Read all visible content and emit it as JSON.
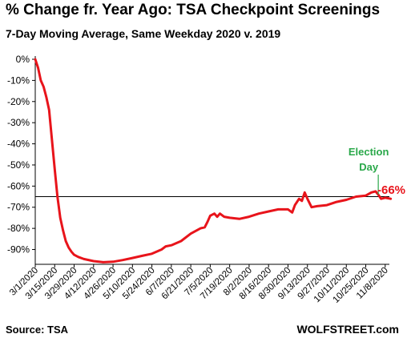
{
  "chart_data": {
    "type": "line",
    "title": "% Change fr. Year Ago: TSA Checkpoint Screenings",
    "subtitle": "7-Day Moving Average, Same Weekday 2020 v. 2019",
    "y_ticks": [
      "0%",
      "-10%",
      "-20%",
      "-30%",
      "-40%",
      "-50%",
      "-60%",
      "-70%",
      "-80%",
      "-90%"
    ],
    "ylim": [
      -97,
      0
    ],
    "x_ticks": [
      "3/1/2020",
      "3/15/2020",
      "3/29/2020",
      "4/12/2020",
      "4/26/2020",
      "5/10/2020",
      "5/24/2020",
      "6/7/2020",
      "6/21/2020",
      "7/5/2020",
      "7/19/2020",
      "8/2/2020",
      "8/16/2020",
      "8/30/2020",
      "9/13/2020",
      "9/27/2020",
      "10/11/2020",
      "10/25/2020",
      "11/8/2020"
    ],
    "series": [
      {
        "color": "#e8141b",
        "points": [
          [
            "3/1/2020",
            0
          ],
          [
            "3/3/2020",
            -4
          ],
          [
            "3/5/2020",
            -10
          ],
          [
            "3/7/2020",
            -13
          ],
          [
            "3/9/2020",
            -18
          ],
          [
            "3/11/2020",
            -24
          ],
          [
            "3/13/2020",
            -38
          ],
          [
            "3/15/2020",
            -52
          ],
          [
            "3/17/2020",
            -65
          ],
          [
            "3/19/2020",
            -75
          ],
          [
            "3/21/2020",
            -81
          ],
          [
            "3/23/2020",
            -86
          ],
          [
            "3/25/2020",
            -89
          ],
          [
            "3/27/2020",
            -91
          ],
          [
            "3/29/2020",
            -92.5
          ],
          [
            "4/1/2020",
            -93.5
          ],
          [
            "4/5/2020",
            -94.5
          ],
          [
            "4/12/2020",
            -95.5
          ],
          [
            "4/19/2020",
            -96
          ],
          [
            "4/26/2020",
            -95.8
          ],
          [
            "5/3/2020",
            -95
          ],
          [
            "5/10/2020",
            -94
          ],
          [
            "5/17/2020",
            -93
          ],
          [
            "5/24/2020",
            -92
          ],
          [
            "5/31/2020",
            -90
          ],
          [
            "6/3/2020",
            -88.5
          ],
          [
            "6/7/2020",
            -88
          ],
          [
            "6/14/2020",
            -86
          ],
          [
            "6/21/2020",
            -82.5
          ],
          [
            "6/28/2020",
            -80
          ],
          [
            "7/1/2020",
            -79.5
          ],
          [
            "7/3/2020",
            -77
          ],
          [
            "7/5/2020",
            -74
          ],
          [
            "7/8/2020",
            -73
          ],
          [
            "7/10/2020",
            -74.5
          ],
          [
            "7/12/2020",
            -73
          ],
          [
            "7/15/2020",
            -74.5
          ],
          [
            "7/19/2020",
            -75
          ],
          [
            "7/26/2020",
            -75.5
          ],
          [
            "8/2/2020",
            -74.5
          ],
          [
            "8/9/2020",
            -73
          ],
          [
            "8/16/2020",
            -72
          ],
          [
            "8/23/2020",
            -71
          ],
          [
            "8/30/2020",
            -71
          ],
          [
            "9/2/2020",
            -72.5
          ],
          [
            "9/4/2020",
            -69
          ],
          [
            "9/7/2020",
            -66
          ],
          [
            "9/9/2020",
            -67
          ],
          [
            "9/11/2020",
            -63
          ],
          [
            "9/13/2020",
            -66
          ],
          [
            "9/16/2020",
            -70
          ],
          [
            "9/20/2020",
            -69.5
          ],
          [
            "9/27/2020",
            -69
          ],
          [
            "10/4/2020",
            -67.5
          ],
          [
            "10/11/2020",
            -66.5
          ],
          [
            "10/18/2020",
            -65
          ],
          [
            "10/25/2020",
            -64.5
          ],
          [
            "10/29/2020",
            -63
          ],
          [
            "11/1/2020",
            -62.5
          ],
          [
            "11/3/2020",
            -64
          ],
          [
            "11/5/2020",
            -66
          ],
          [
            "11/8/2020",
            -65.5
          ],
          [
            "11/12/2020",
            -66
          ]
        ]
      }
    ],
    "reference_line": {
      "value": -65,
      "color": "#000000"
    },
    "annotations": [
      {
        "text": "Election",
        "color": "#2aa84a"
      },
      {
        "text": "Day",
        "color": "#2aa84a"
      },
      {
        "text": "-66%",
        "color": "#e8141b"
      }
    ],
    "grid": false,
    "legend": "none"
  },
  "footer": {
    "source": "Source: TSA",
    "brand": "WOLFSTREET.com"
  }
}
